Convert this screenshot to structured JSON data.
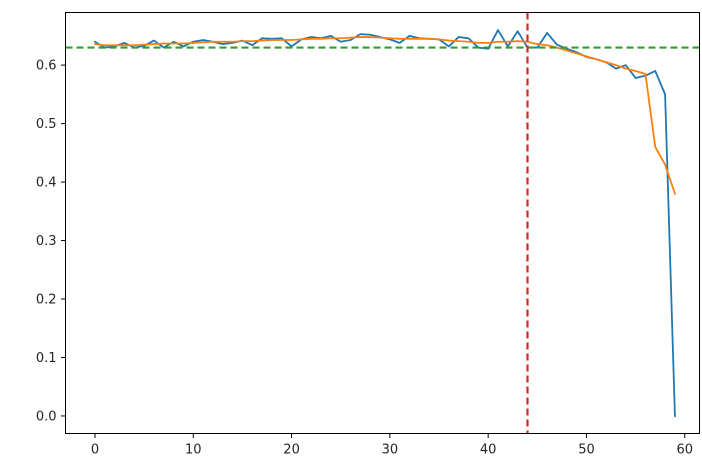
{
  "chart_data": {
    "type": "line",
    "title": "",
    "xlabel": "",
    "ylabel": "",
    "xlim": [
      -3,
      61.5
    ],
    "ylim": [
      -0.03,
      0.69
    ],
    "grid": false,
    "x_ticks": [
      0,
      10,
      20,
      30,
      40,
      50,
      60
    ],
    "x_tick_labels": [
      "0",
      "10",
      "20",
      "30",
      "40",
      "50",
      "60"
    ],
    "y_ticks": [
      0.0,
      0.1,
      0.2,
      0.3,
      0.4,
      0.5,
      0.6
    ],
    "y_tick_labels": [
      "0.0",
      "0.1",
      "0.2",
      "0.3",
      "0.4",
      "0.5",
      "0.6"
    ],
    "x": [
      0,
      1,
      2,
      3,
      4,
      5,
      6,
      7,
      8,
      9,
      10,
      11,
      12,
      13,
      14,
      15,
      16,
      17,
      18,
      19,
      20,
      21,
      22,
      23,
      24,
      25,
      26,
      27,
      28,
      29,
      30,
      31,
      32,
      33,
      34,
      35,
      36,
      37,
      38,
      39,
      40,
      41,
      42,
      43,
      44,
      45,
      46,
      47,
      48,
      49,
      50,
      51,
      52,
      53,
      54,
      55,
      56,
      57,
      58,
      59
    ],
    "series": [
      {
        "color": "#1f77b4",
        "values": [
          0.64,
          0.63,
          0.632,
          0.638,
          0.63,
          0.633,
          0.642,
          0.63,
          0.64,
          0.632,
          0.64,
          0.643,
          0.64,
          0.636,
          0.638,
          0.642,
          0.634,
          0.646,
          0.645,
          0.646,
          0.632,
          0.644,
          0.648,
          0.646,
          0.65,
          0.64,
          0.643,
          0.653,
          0.652,
          0.648,
          0.644,
          0.638,
          0.65,
          0.646,
          0.645,
          0.644,
          0.632,
          0.648,
          0.646,
          0.63,
          0.628,
          0.66,
          0.632,
          0.658,
          0.63,
          0.63,
          0.655,
          0.635,
          0.628,
          0.622,
          0.614,
          0.61,
          0.605,
          0.594,
          0.6,
          0.578,
          0.582,
          0.59,
          0.55,
          0.0
        ]
      },
      {
        "color": "#ff7f0e",
        "values": [
          0.636,
          0.634,
          0.634,
          0.634,
          0.634,
          0.635,
          0.636,
          0.637,
          0.637,
          0.637,
          0.638,
          0.639,
          0.64,
          0.64,
          0.64,
          0.641,
          0.641,
          0.642,
          0.643,
          0.643,
          0.643,
          0.644,
          0.645,
          0.645,
          0.646,
          0.646,
          0.647,
          0.648,
          0.648,
          0.647,
          0.646,
          0.645,
          0.645,
          0.645,
          0.645,
          0.644,
          0.642,
          0.641,
          0.64,
          0.638,
          0.638,
          0.64,
          0.64,
          0.641,
          0.64,
          0.636,
          0.634,
          0.63,
          0.625,
          0.62,
          0.615,
          0.61,
          0.605,
          0.6,
          0.594,
          0.59,
          0.585,
          0.46,
          0.43,
          0.38
        ]
      }
    ],
    "reference_lines": [
      {
        "orientation": "horizontal",
        "value": 0.63,
        "color": "#2ca02c",
        "style": "dashed"
      },
      {
        "orientation": "vertical",
        "value": 44,
        "color": "#d62728",
        "style": "dashed"
      }
    ]
  }
}
